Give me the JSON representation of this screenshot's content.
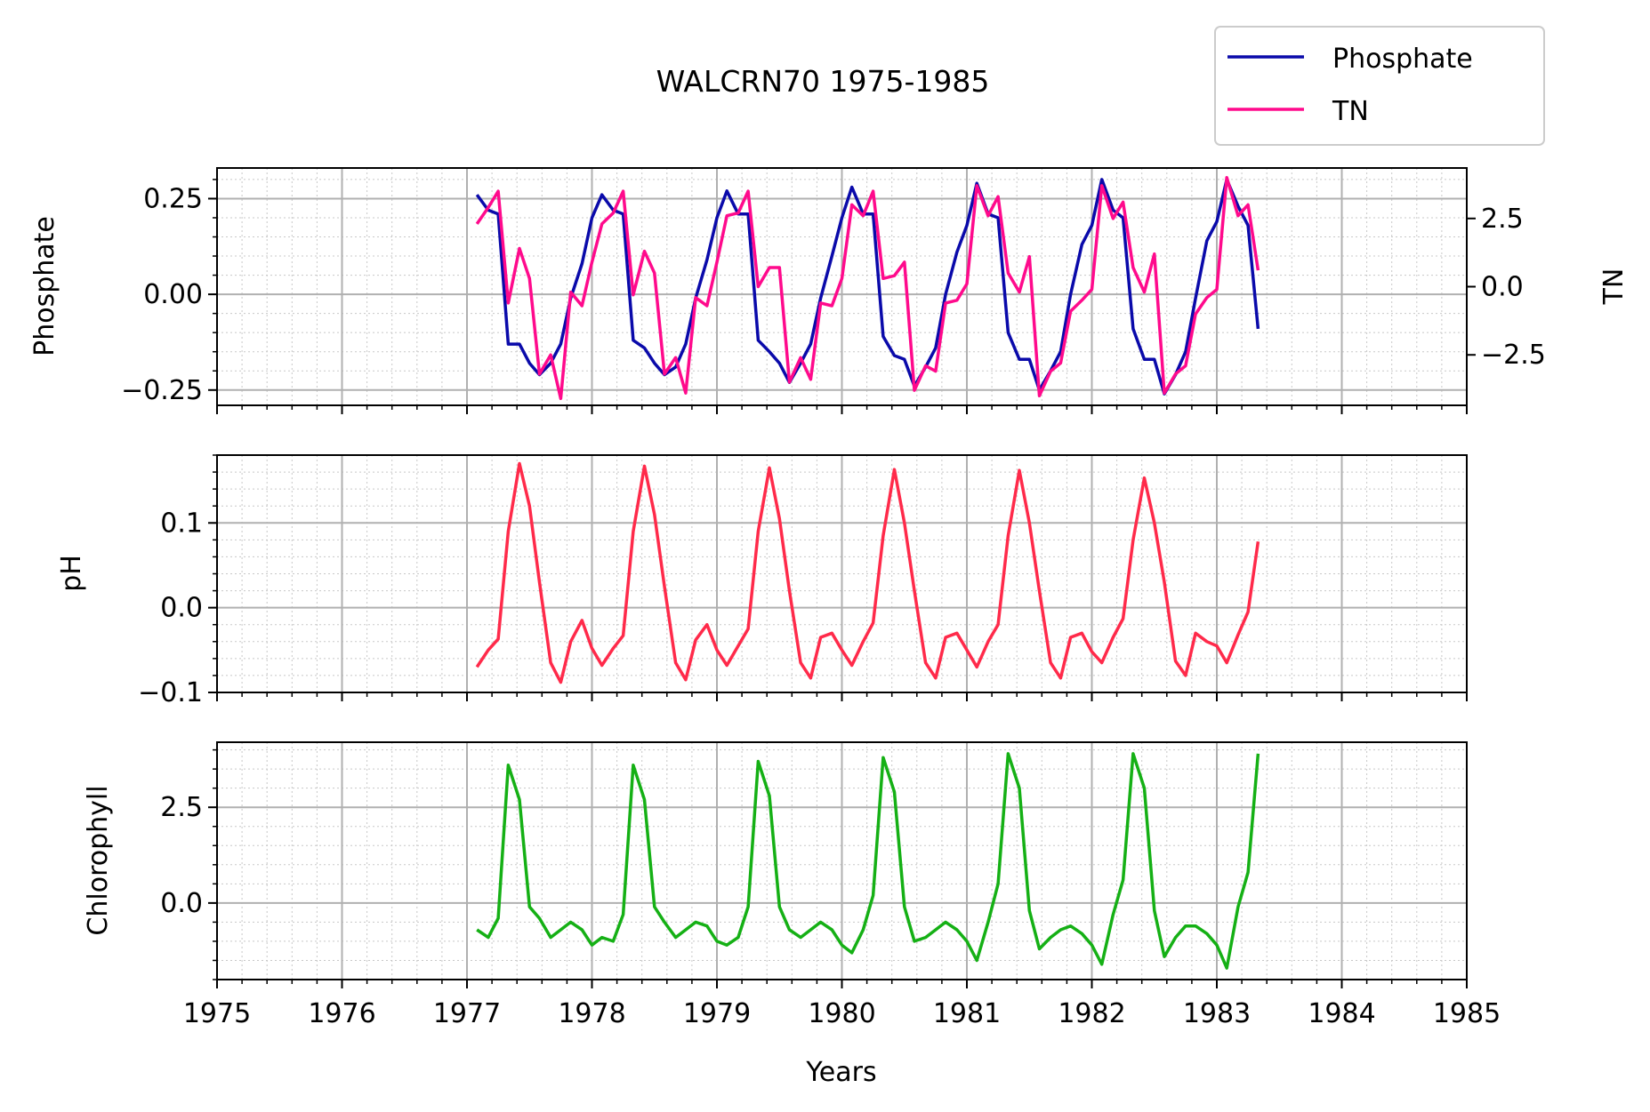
{
  "title": "WALCRN70 1975-1985",
  "xlabel": "Years",
  "x_ticks": [
    "1975",
    "1976",
    "1977",
    "1978",
    "1979",
    "1980",
    "1981",
    "1982",
    "1983",
    "1984",
    "1985"
  ],
  "legend": [
    {
      "label": "Phosphate",
      "color": "#0a0aaa"
    },
    {
      "label": "TN",
      "color": "#ff0a8c"
    }
  ],
  "chart_data": [
    {
      "type": "line",
      "ylabel": "Phosphate",
      "y2label": "TN",
      "xlim": [
        1975,
        1985
      ],
      "ylim": [
        -0.29,
        0.33
      ],
      "y2lim": [
        -4.35,
        4.35
      ],
      "y_ticks": [
        "0.25",
        "0.00",
        "−0.25"
      ],
      "y_tick_values": [
        0.25,
        0.0,
        -0.25
      ],
      "y2_ticks": [
        "2.5",
        "0.0",
        "−2.5"
      ],
      "y2_tick_values": [
        2.5,
        0.0,
        -2.5
      ],
      "grid": true,
      "legend_position": "top-right",
      "series": [
        {
          "name": "Phosphate",
          "axis": "left",
          "color": "#0a0aaa",
          "x": [
            1977.08,
            1977.17,
            1977.25,
            1977.33,
            1977.42,
            1977.5,
            1977.58,
            1977.67,
            1977.75,
            1977.83,
            1977.92,
            1978.0,
            1978.08,
            1978.17,
            1978.25,
            1978.33,
            1978.42,
            1978.5,
            1978.58,
            1978.67,
            1978.75,
            1978.83,
            1978.92,
            1979.0,
            1979.08,
            1979.17,
            1979.25,
            1979.33,
            1979.42,
            1979.5,
            1979.58,
            1979.67,
            1979.75,
            1979.83,
            1979.92,
            1980.0,
            1980.08,
            1980.17,
            1980.25,
            1980.33,
            1980.42,
            1980.5,
            1980.58,
            1980.67,
            1980.75,
            1980.83,
            1980.92,
            1981.0,
            1981.08,
            1981.17,
            1981.25,
            1981.33,
            1981.42,
            1981.5,
            1981.58,
            1981.67,
            1981.75,
            1981.83,
            1981.92,
            1982.0,
            1982.08,
            1982.17,
            1982.25,
            1982.33,
            1982.42,
            1982.5,
            1982.58,
            1982.67,
            1982.75,
            1982.83,
            1982.92,
            1983.0,
            1983.08,
            1983.17,
            1983.25,
            1983.33
          ],
          "values": [
            0.26,
            0.22,
            0.21,
            -0.13,
            -0.13,
            -0.18,
            -0.21,
            -0.18,
            -0.13,
            -0.01,
            0.08,
            0.2,
            0.26,
            0.22,
            0.21,
            -0.12,
            -0.14,
            -0.18,
            -0.21,
            -0.19,
            -0.13,
            -0.01,
            0.09,
            0.2,
            0.27,
            0.21,
            0.21,
            -0.12,
            -0.15,
            -0.18,
            -0.23,
            -0.18,
            -0.13,
            -0.01,
            0.1,
            0.2,
            0.28,
            0.21,
            0.21,
            -0.11,
            -0.16,
            -0.17,
            -0.24,
            -0.19,
            -0.14,
            0.0,
            0.11,
            0.18,
            0.29,
            0.21,
            0.2,
            -0.1,
            -0.17,
            -0.17,
            -0.25,
            -0.2,
            -0.15,
            0.0,
            0.13,
            0.18,
            0.3,
            0.22,
            0.2,
            -0.09,
            -0.17,
            -0.17,
            -0.26,
            -0.21,
            -0.15,
            -0.01,
            0.14,
            0.19,
            0.3,
            0.23,
            0.18,
            -0.09
          ]
        },
        {
          "name": "TN",
          "axis": "right",
          "color": "#ff0a8c",
          "x": [
            1977.08,
            1977.17,
            1977.25,
            1977.33,
            1977.42,
            1977.5,
            1977.58,
            1977.67,
            1977.75,
            1977.83,
            1977.92,
            1978.0,
            1978.08,
            1978.17,
            1978.25,
            1978.33,
            1978.42,
            1978.5,
            1978.58,
            1978.67,
            1978.75,
            1978.83,
            1978.92,
            1979.0,
            1979.08,
            1979.17,
            1979.25,
            1979.33,
            1979.42,
            1979.5,
            1979.58,
            1979.67,
            1979.75,
            1979.83,
            1979.92,
            1980.0,
            1980.08,
            1980.17,
            1980.25,
            1980.33,
            1980.42,
            1980.5,
            1980.58,
            1980.67,
            1980.75,
            1980.83,
            1980.92,
            1981.0,
            1981.08,
            1981.17,
            1981.25,
            1981.33,
            1981.42,
            1981.5,
            1981.58,
            1981.67,
            1981.75,
            1981.83,
            1981.92,
            1982.0,
            1982.08,
            1982.17,
            1982.25,
            1982.33,
            1982.42,
            1982.5,
            1982.58,
            1982.67,
            1982.75,
            1982.83,
            1982.92,
            1983.0,
            1983.08,
            1983.17,
            1983.25,
            1983.33
          ],
          "values": [
            2.3,
            2.9,
            3.5,
            -0.6,
            1.4,
            0.3,
            -3.2,
            -2.5,
            -4.1,
            -0.2,
            -0.7,
            0.9,
            2.3,
            2.7,
            3.5,
            -0.3,
            1.3,
            0.5,
            -3.2,
            -2.6,
            -3.9,
            -0.4,
            -0.7,
            0.9,
            2.6,
            2.7,
            3.5,
            0.0,
            0.7,
            0.7,
            -3.5,
            -2.6,
            -3.4,
            -0.6,
            -0.7,
            0.3,
            3.0,
            2.6,
            3.5,
            0.3,
            0.4,
            0.9,
            -3.8,
            -2.9,
            -3.1,
            -0.6,
            -0.5,
            0.1,
            3.7,
            2.6,
            3.3,
            0.5,
            -0.2,
            1.1,
            -4.0,
            -3.1,
            -2.8,
            -0.9,
            -0.5,
            -0.1,
            3.7,
            2.5,
            3.1,
            0.7,
            -0.2,
            1.2,
            -3.9,
            -3.2,
            -2.9,
            -1.0,
            -0.4,
            -0.1,
            4.0,
            2.6,
            3.0,
            0.6
          ]
        }
      ]
    },
    {
      "type": "line",
      "ylabel": "pH",
      "xlim": [
        1975,
        1985
      ],
      "ylim": [
        -0.1,
        0.18
      ],
      "y_ticks": [
        "0.1",
        "0.0",
        "−0.1"
      ],
      "y_tick_values": [
        0.1,
        0.0,
        -0.1
      ],
      "grid": true,
      "series": [
        {
          "color": "#ff2a4a",
          "x": [
            1977.08,
            1977.17,
            1977.25,
            1977.33,
            1977.42,
            1977.5,
            1977.58,
            1977.67,
            1977.75,
            1977.83,
            1977.92,
            1978.0,
            1978.08,
            1978.17,
            1978.25,
            1978.33,
            1978.42,
            1978.5,
            1978.58,
            1978.67,
            1978.75,
            1978.83,
            1978.92,
            1979.0,
            1979.08,
            1979.17,
            1979.25,
            1979.33,
            1979.42,
            1979.5,
            1979.58,
            1979.67,
            1979.75,
            1979.83,
            1979.92,
            1980.0,
            1980.08,
            1980.17,
            1980.25,
            1980.33,
            1980.42,
            1980.5,
            1980.58,
            1980.67,
            1980.75,
            1980.83,
            1980.92,
            1981.0,
            1981.08,
            1981.17,
            1981.25,
            1981.33,
            1981.42,
            1981.5,
            1981.58,
            1981.67,
            1981.75,
            1981.83,
            1981.92,
            1982.0,
            1982.08,
            1982.17,
            1982.25,
            1982.33,
            1982.42,
            1982.5,
            1982.58,
            1982.67,
            1982.75,
            1982.83,
            1982.92,
            1983.0,
            1983.08,
            1983.17,
            1983.25,
            1983.33
          ],
          "values": [
            -0.07,
            -0.05,
            -0.037,
            0.09,
            0.17,
            0.12,
            0.03,
            -0.065,
            -0.088,
            -0.04,
            -0.015,
            -0.048,
            -0.068,
            -0.048,
            -0.033,
            0.09,
            0.167,
            0.11,
            0.025,
            -0.065,
            -0.085,
            -0.038,
            -0.02,
            -0.05,
            -0.068,
            -0.045,
            -0.025,
            0.09,
            0.165,
            0.105,
            0.02,
            -0.065,
            -0.083,
            -0.035,
            -0.03,
            -0.05,
            -0.068,
            -0.04,
            -0.018,
            0.085,
            0.163,
            0.1,
            0.02,
            -0.065,
            -0.083,
            -0.035,
            -0.03,
            -0.05,
            -0.07,
            -0.04,
            -0.02,
            0.085,
            0.162,
            0.1,
            0.02,
            -0.065,
            -0.083,
            -0.035,
            -0.03,
            -0.052,
            -0.065,
            -0.035,
            -0.013,
            0.08,
            0.153,
            0.1,
            0.03,
            -0.063,
            -0.08,
            -0.03,
            -0.04,
            -0.045,
            -0.065,
            -0.032,
            -0.005,
            0.078
          ]
        }
      ]
    },
    {
      "type": "line",
      "ylabel": "Chlorophyll",
      "xlim": [
        1975,
        1985
      ],
      "ylim": [
        -2.0,
        4.2
      ],
      "y_ticks": [
        "2.5",
        "0.0"
      ],
      "y_tick_values": [
        2.5,
        0.0
      ],
      "grid": true,
      "series": [
        {
          "color": "#15b015",
          "x": [
            1977.08,
            1977.17,
            1977.25,
            1977.33,
            1977.42,
            1977.5,
            1977.58,
            1977.67,
            1977.75,
            1977.83,
            1977.92,
            1978.0,
            1978.08,
            1978.17,
            1978.25,
            1978.33,
            1978.42,
            1978.5,
            1978.58,
            1978.67,
            1978.75,
            1978.83,
            1978.92,
            1979.0,
            1979.08,
            1979.17,
            1979.25,
            1979.33,
            1979.42,
            1979.5,
            1979.58,
            1979.67,
            1979.75,
            1979.83,
            1979.92,
            1980.0,
            1980.08,
            1980.17,
            1980.25,
            1980.33,
            1980.42,
            1980.5,
            1980.58,
            1980.67,
            1980.75,
            1980.83,
            1980.92,
            1981.0,
            1981.08,
            1981.17,
            1981.25,
            1981.33,
            1981.42,
            1981.5,
            1981.58,
            1981.67,
            1981.75,
            1981.83,
            1981.92,
            1982.0,
            1982.08,
            1982.17,
            1982.25,
            1982.33,
            1982.42,
            1982.5,
            1982.58,
            1982.67,
            1982.75,
            1982.83,
            1982.92,
            1983.0,
            1983.08,
            1983.17,
            1983.25,
            1983.33
          ],
          "values": [
            -0.7,
            -0.9,
            -0.4,
            3.6,
            2.7,
            -0.1,
            -0.4,
            -0.9,
            -0.7,
            -0.5,
            -0.7,
            -1.1,
            -0.9,
            -1.0,
            -0.3,
            3.6,
            2.7,
            -0.1,
            -0.5,
            -0.9,
            -0.7,
            -0.5,
            -0.6,
            -1.0,
            -1.1,
            -0.9,
            -0.1,
            3.7,
            2.8,
            -0.1,
            -0.7,
            -0.9,
            -0.7,
            -0.5,
            -0.7,
            -1.1,
            -1.3,
            -0.7,
            0.2,
            3.8,
            2.9,
            -0.1,
            -1.0,
            -0.9,
            -0.7,
            -0.5,
            -0.7,
            -1.0,
            -1.5,
            -0.5,
            0.5,
            3.9,
            3.0,
            -0.2,
            -1.2,
            -0.9,
            -0.7,
            -0.6,
            -0.8,
            -1.1,
            -1.6,
            -0.3,
            0.6,
            3.9,
            3.0,
            -0.2,
            -1.4,
            -0.9,
            -0.6,
            -0.6,
            -0.8,
            -1.1,
            -1.7,
            -0.1,
            0.8,
            3.9
          ]
        }
      ]
    }
  ]
}
